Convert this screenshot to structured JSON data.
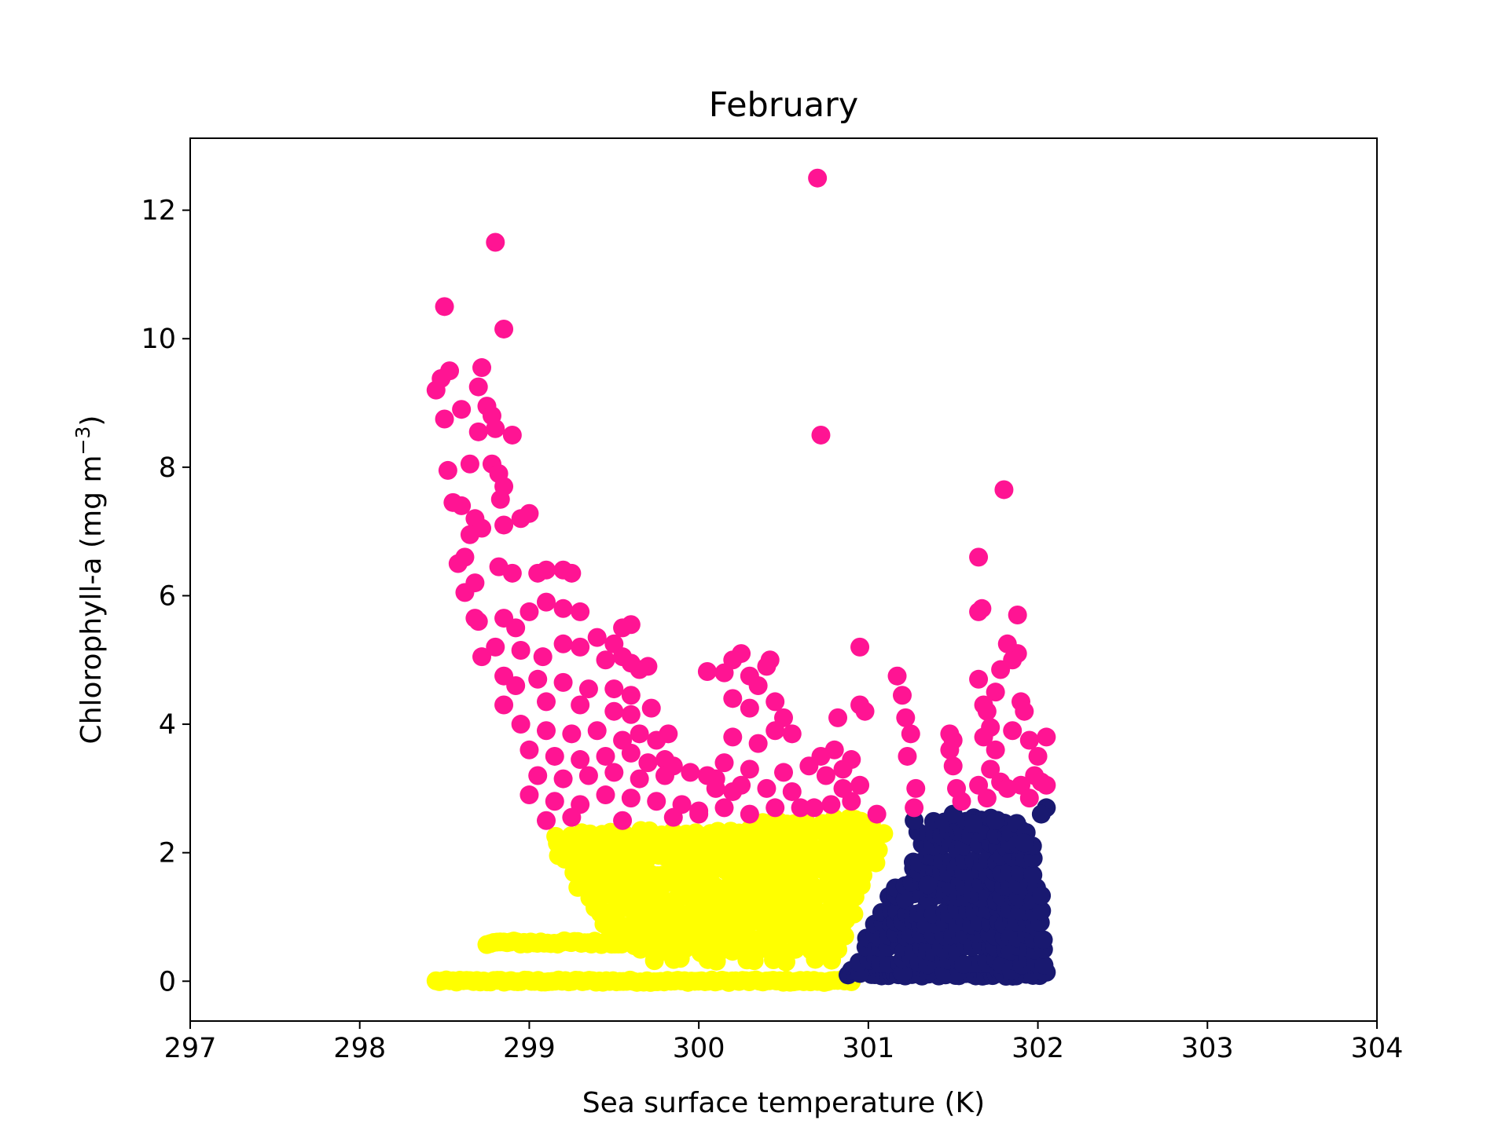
{
  "chart_data": {
    "type": "scatter",
    "title": "February",
    "xlabel": "Sea surface temperature (K)",
    "ylabel_main": "Chlorophyll-a (mg m",
    "ylabel_sup": "−3",
    "ylabel_close": ")",
    "xlim": [
      297,
      304
    ],
    "ylim": [
      -0.62,
      13.12
    ],
    "xticks": [
      297,
      298,
      299,
      300,
      301,
      302,
      303,
      304
    ],
    "xtick_labels": [
      "297",
      "298",
      "299",
      "300",
      "301",
      "302",
      "303",
      "304"
    ],
    "yticks": [
      0,
      2,
      4,
      6,
      8,
      10,
      12
    ],
    "ytick_labels": [
      "0",
      "2",
      "4",
      "6",
      "8",
      "10",
      "12"
    ],
    "grid": false,
    "legend": "none",
    "series": [
      {
        "color": "#ffff00",
        "bands": [
          {
            "x0": 298.45,
            "x1": 300.9,
            "y": 0.0,
            "jitter": 0.04
          },
          {
            "x0": 298.75,
            "x1": 300.3,
            "y": 0.6,
            "jitter": 0.06
          }
        ],
        "polygon": [
          [
            299.12,
            2.3
          ],
          [
            300.9,
            2.55
          ],
          [
            301.15,
            2.4
          ],
          [
            300.95,
            1.3
          ],
          [
            300.85,
            0.3
          ],
          [
            299.65,
            0.3
          ],
          [
            299.4,
            0.9
          ],
          [
            299.12,
            2.1
          ]
        ]
      },
      {
        "color": "#191970",
        "bands": [
          {
            "x0": 300.88,
            "x1": 302.05,
            "y": 0.12,
            "jitter": 0.1
          }
        ],
        "polygon": [
          [
            300.9,
            0.1
          ],
          [
            301.1,
            1.4
          ],
          [
            301.25,
            1.6
          ],
          [
            301.3,
            2.5
          ],
          [
            301.55,
            2.6
          ],
          [
            301.65,
            2.65
          ],
          [
            301.95,
            2.4
          ],
          [
            302.02,
            1.5
          ],
          [
            302.05,
            0.15
          ]
        ],
        "points": [
          [
            301.27,
            2.5
          ],
          [
            301.5,
            2.6
          ],
          [
            302.05,
            2.7
          ],
          [
            302.02,
            2.6
          ],
          [
            301.75,
            2.5
          ],
          [
            301.62,
            2.45
          ],
          [
            301.92,
            2.15
          ],
          [
            301.35,
            1.5
          ]
        ]
      },
      {
        "color": "#ff1493",
        "points": [
          [
            300.7,
            12.5
          ],
          [
            298.8,
            11.5
          ],
          [
            298.5,
            10.5
          ],
          [
            298.85,
            10.15
          ],
          [
            300.72,
            8.5
          ],
          [
            301.8,
            7.65
          ],
          [
            298.45,
            9.2
          ],
          [
            298.48,
            9.38
          ],
          [
            298.53,
            9.5
          ],
          [
            298.72,
            9.55
          ],
          [
            298.7,
            9.25
          ],
          [
            298.5,
            8.75
          ],
          [
            298.6,
            8.9
          ],
          [
            298.75,
            8.95
          ],
          [
            298.78,
            8.8
          ],
          [
            298.7,
            8.55
          ],
          [
            298.8,
            8.6
          ],
          [
            298.9,
            8.5
          ],
          [
            298.52,
            7.95
          ],
          [
            298.65,
            8.05
          ],
          [
            298.78,
            8.05
          ],
          [
            298.82,
            7.9
          ],
          [
            298.85,
            7.7
          ],
          [
            298.83,
            7.5
          ],
          [
            298.55,
            7.45
          ],
          [
            298.6,
            7.4
          ],
          [
            298.68,
            7.2
          ],
          [
            298.65,
            6.95
          ],
          [
            298.72,
            7.05
          ],
          [
            298.85,
            7.1
          ],
          [
            298.95,
            7.2
          ],
          [
            299.0,
            7.28
          ],
          [
            298.58,
            6.5
          ],
          [
            298.62,
            6.6
          ],
          [
            298.68,
            6.2
          ],
          [
            298.62,
            6.05
          ],
          [
            298.82,
            6.45
          ],
          [
            298.9,
            6.35
          ],
          [
            299.05,
            6.35
          ],
          [
            299.1,
            6.4
          ],
          [
            299.2,
            6.4
          ],
          [
            299.25,
            6.35
          ],
          [
            298.7,
            5.6
          ],
          [
            298.68,
            5.65
          ],
          [
            298.85,
            5.65
          ],
          [
            298.92,
            5.5
          ],
          [
            299.0,
            5.75
          ],
          [
            299.1,
            5.9
          ],
          [
            299.2,
            5.8
          ],
          [
            299.3,
            5.75
          ],
          [
            299.5,
            5.25
          ],
          [
            299.55,
            5.5
          ],
          [
            299.6,
            5.55
          ],
          [
            299.7,
            4.9
          ],
          [
            298.72,
            5.05
          ],
          [
            298.8,
            5.2
          ],
          [
            298.95,
            5.15
          ],
          [
            299.08,
            5.05
          ],
          [
            299.2,
            5.25
          ],
          [
            299.3,
            5.2
          ],
          [
            299.4,
            5.35
          ],
          [
            299.45,
            5.0
          ],
          [
            299.55,
            5.05
          ],
          [
            299.6,
            4.95
          ],
          [
            299.65,
            4.85
          ],
          [
            298.85,
            4.75
          ],
          [
            298.92,
            4.6
          ],
          [
            299.05,
            4.7
          ],
          [
            299.2,
            4.65
          ],
          [
            299.35,
            4.55
          ],
          [
            299.5,
            4.55
          ],
          [
            299.6,
            4.45
          ],
          [
            299.72,
            4.25
          ],
          [
            299.6,
            4.15
          ],
          [
            299.5,
            4.2
          ],
          [
            299.3,
            4.3
          ],
          [
            299.1,
            4.35
          ],
          [
            298.85,
            4.3
          ],
          [
            298.95,
            4.0
          ],
          [
            299.1,
            3.9
          ],
          [
            299.25,
            3.85
          ],
          [
            299.4,
            3.9
          ],
          [
            299.55,
            3.75
          ],
          [
            299.65,
            3.85
          ],
          [
            299.75,
            3.75
          ],
          [
            299.82,
            3.85
          ],
          [
            299.0,
            3.6
          ],
          [
            299.15,
            3.5
          ],
          [
            299.3,
            3.45
          ],
          [
            299.45,
            3.5
          ],
          [
            299.6,
            3.55
          ],
          [
            299.7,
            3.4
          ],
          [
            299.8,
            3.45
          ],
          [
            299.85,
            3.35
          ],
          [
            299.05,
            3.2
          ],
          [
            299.2,
            3.15
          ],
          [
            299.35,
            3.2
          ],
          [
            299.5,
            3.25
          ],
          [
            299.65,
            3.15
          ],
          [
            299.8,
            3.2
          ],
          [
            299.95,
            3.25
          ],
          [
            300.05,
            3.2
          ],
          [
            300.1,
            3.15
          ],
          [
            299.0,
            2.9
          ],
          [
            299.15,
            2.8
          ],
          [
            299.3,
            2.75
          ],
          [
            299.45,
            2.9
          ],
          [
            299.6,
            2.85
          ],
          [
            299.75,
            2.8
          ],
          [
            299.9,
            2.75
          ],
          [
            300.0,
            2.65
          ],
          [
            300.15,
            2.7
          ],
          [
            299.1,
            2.5
          ],
          [
            299.25,
            2.55
          ],
          [
            299.55,
            2.5
          ],
          [
            299.85,
            2.55
          ],
          [
            300.0,
            2.6
          ],
          [
            300.05,
            4.82
          ],
          [
            300.15,
            4.8
          ],
          [
            300.2,
            5.0
          ],
          [
            300.25,
            5.1
          ],
          [
            300.3,
            4.75
          ],
          [
            300.35,
            4.6
          ],
          [
            300.2,
            4.4
          ],
          [
            300.3,
            4.25
          ],
          [
            300.45,
            4.35
          ],
          [
            300.4,
            4.9
          ],
          [
            300.42,
            5.0
          ],
          [
            300.5,
            4.1
          ],
          [
            300.45,
            3.9
          ],
          [
            300.35,
            3.7
          ],
          [
            300.55,
            3.85
          ],
          [
            300.2,
            3.8
          ],
          [
            300.15,
            3.4
          ],
          [
            300.3,
            3.3
          ],
          [
            300.5,
            3.25
          ],
          [
            300.4,
            3.0
          ],
          [
            300.55,
            2.95
          ],
          [
            300.6,
            2.7
          ],
          [
            300.45,
            2.7
          ],
          [
            300.3,
            2.6
          ],
          [
            300.1,
            3.0
          ],
          [
            300.2,
            2.95
          ],
          [
            300.25,
            3.05
          ],
          [
            300.65,
            3.35
          ],
          [
            300.72,
            3.5
          ],
          [
            300.8,
            3.6
          ],
          [
            300.85,
            3.3
          ],
          [
            300.9,
            3.45
          ],
          [
            300.75,
            3.2
          ],
          [
            300.85,
            3.0
          ],
          [
            300.95,
            3.05
          ],
          [
            300.9,
            2.8
          ],
          [
            300.78,
            2.75
          ],
          [
            300.68,
            2.7
          ],
          [
            300.82,
            4.1
          ],
          [
            300.95,
            4.3
          ],
          [
            300.98,
            4.2
          ],
          [
            300.95,
            5.2
          ],
          [
            301.05,
            2.6
          ],
          [
            301.17,
            4.75
          ],
          [
            301.2,
            4.45
          ],
          [
            301.22,
            4.1
          ],
          [
            301.25,
            3.85
          ],
          [
            301.23,
            3.5
          ],
          [
            301.28,
            3.0
          ],
          [
            301.27,
            2.7
          ],
          [
            301.48,
            3.85
          ],
          [
            301.5,
            3.75
          ],
          [
            301.48,
            3.6
          ],
          [
            301.5,
            3.35
          ],
          [
            301.52,
            3.0
          ],
          [
            301.55,
            2.8
          ],
          [
            301.65,
            6.6
          ],
          [
            301.65,
            5.75
          ],
          [
            301.67,
            5.8
          ],
          [
            301.65,
            4.7
          ],
          [
            301.68,
            4.3
          ],
          [
            301.7,
            4.2
          ],
          [
            301.72,
            3.95
          ],
          [
            301.68,
            3.8
          ],
          [
            301.75,
            3.6
          ],
          [
            301.72,
            3.3
          ],
          [
            301.78,
            3.1
          ],
          [
            301.65,
            3.05
          ],
          [
            301.7,
            2.85
          ],
          [
            301.75,
            4.5
          ],
          [
            301.78,
            4.85
          ],
          [
            301.85,
            5.0
          ],
          [
            301.88,
            5.1
          ],
          [
            301.82,
            5.25
          ],
          [
            301.88,
            5.7
          ],
          [
            301.9,
            4.35
          ],
          [
            301.92,
            4.2
          ],
          [
            301.85,
            3.9
          ],
          [
            301.95,
            3.75
          ],
          [
            302.0,
            3.5
          ],
          [
            302.05,
            3.8
          ],
          [
            301.98,
            3.2
          ],
          [
            302.02,
            3.1
          ],
          [
            301.9,
            3.05
          ],
          [
            301.82,
            3.0
          ],
          [
            301.95,
            2.85
          ],
          [
            302.05,
            3.05
          ]
        ]
      }
    ]
  }
}
